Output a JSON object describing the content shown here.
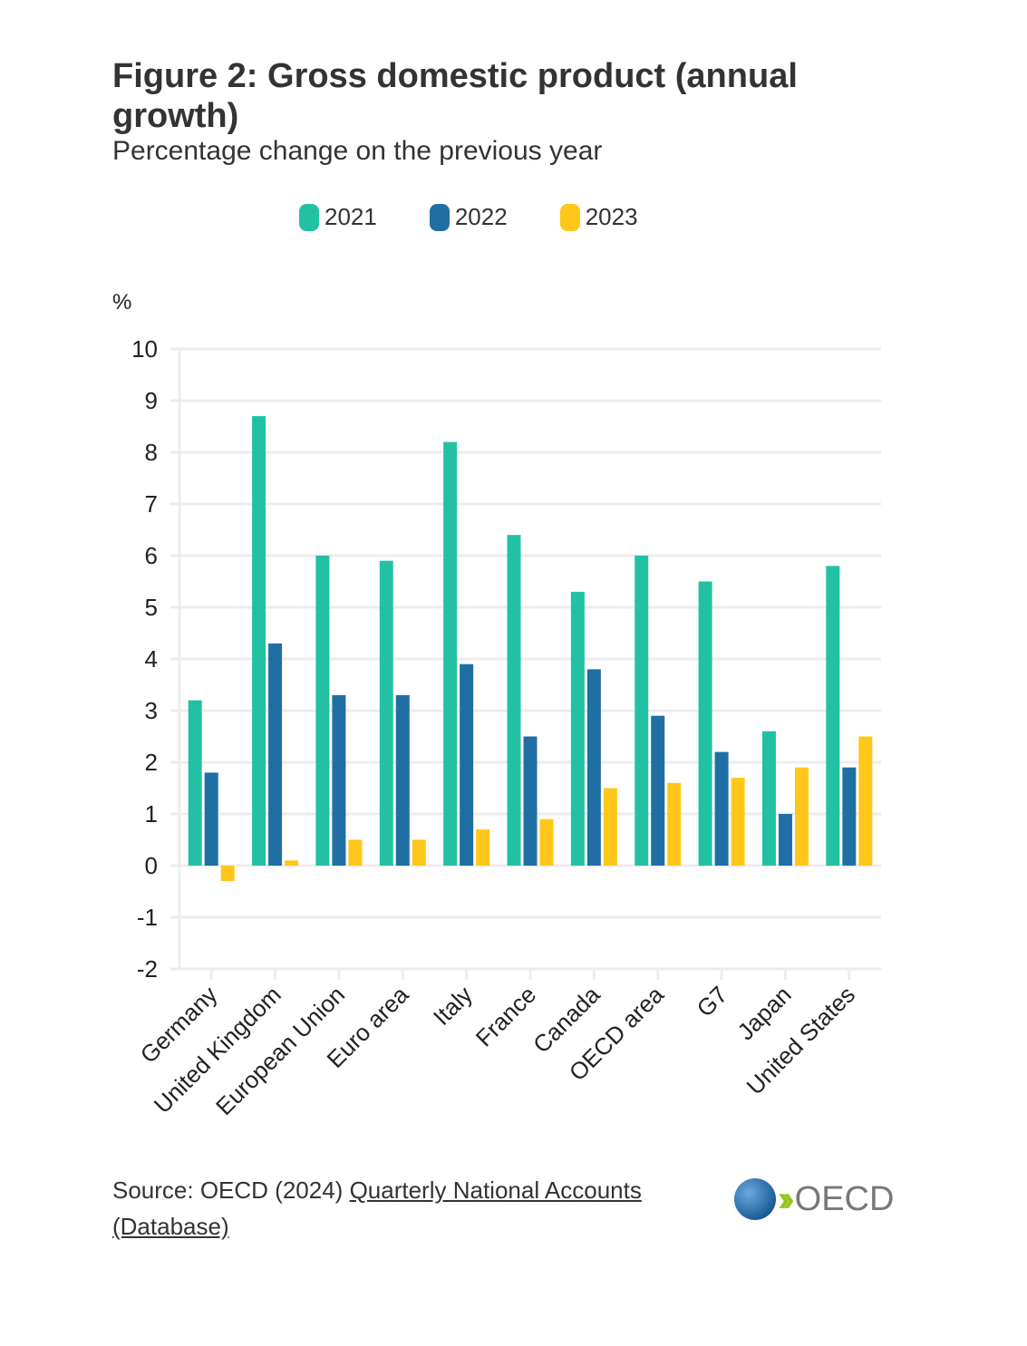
{
  "header": {
    "title": "Figure 2: Gross domestic product (annual growth)",
    "subtitle": "Percentage change on the previous year"
  },
  "legend": [
    {
      "label": "2021",
      "color": "#23C1A4"
    },
    {
      "label": "2022",
      "color": "#1F6FA4"
    },
    {
      "label": "2023",
      "color": "#FFC719"
    }
  ],
  "footer": {
    "source_prefix": "Source: OECD (2024) ",
    "source_link": "Quarterly National Accounts (Database)",
    "logo_text": "OECD"
  },
  "chart_data": {
    "type": "bar",
    "title": "Figure 2: Gross domestic product (annual growth)",
    "subtitle": "Percentage change on the previous year",
    "xlabel": "",
    "ylabel": "%",
    "ylim": [
      -2,
      10
    ],
    "yticks": [
      -2,
      -1,
      0,
      1,
      2,
      3,
      4,
      5,
      6,
      7,
      8,
      9,
      10
    ],
    "grid": true,
    "legend_position": "top",
    "categories": [
      "Germany",
      "United Kingdom",
      "European Union",
      "Euro area",
      "Italy",
      "France",
      "Canada",
      "OECD area",
      "G7",
      "Japan",
      "United States"
    ],
    "series": [
      {
        "name": "2021",
        "color": "#23C1A4",
        "values": [
          3.2,
          8.7,
          6.0,
          5.9,
          8.2,
          6.4,
          5.3,
          6.0,
          5.5,
          2.6,
          5.8
        ]
      },
      {
        "name": "2022",
        "color": "#1F6FA4",
        "values": [
          1.8,
          4.3,
          3.3,
          3.3,
          3.9,
          2.5,
          3.8,
          2.9,
          2.2,
          1.0,
          1.9
        ]
      },
      {
        "name": "2023",
        "color": "#FFC719",
        "values": [
          -0.3,
          0.1,
          0.5,
          0.5,
          0.7,
          0.9,
          1.5,
          1.6,
          1.7,
          1.9,
          2.5
        ]
      }
    ]
  }
}
